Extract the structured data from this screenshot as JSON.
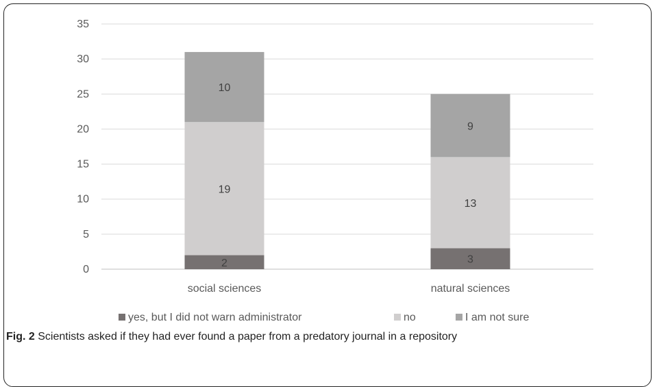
{
  "chart_data": {
    "type": "bar",
    "stacked": true,
    "categories": [
      "social sciences",
      "natural sciences"
    ],
    "series": [
      {
        "name": "yes, but I did not warn administrator",
        "values": [
          2,
          3
        ],
        "color": "#767171"
      },
      {
        "name": "no",
        "values": [
          19,
          13
        ],
        "color": "#d0cece"
      },
      {
        "name": "I am not sure",
        "values": [
          10,
          9
        ],
        "color": "#a5a5a5"
      }
    ],
    "ylim": [
      0,
      35
    ],
    "yticks": [
      0,
      5,
      10,
      15,
      20,
      25,
      30,
      35
    ],
    "grid": true,
    "legend_position": "bottom"
  },
  "caption": {
    "label": "Fig. 2",
    "text": " Scientists asked if they had ever found a paper from a predatory journal in a repository"
  }
}
